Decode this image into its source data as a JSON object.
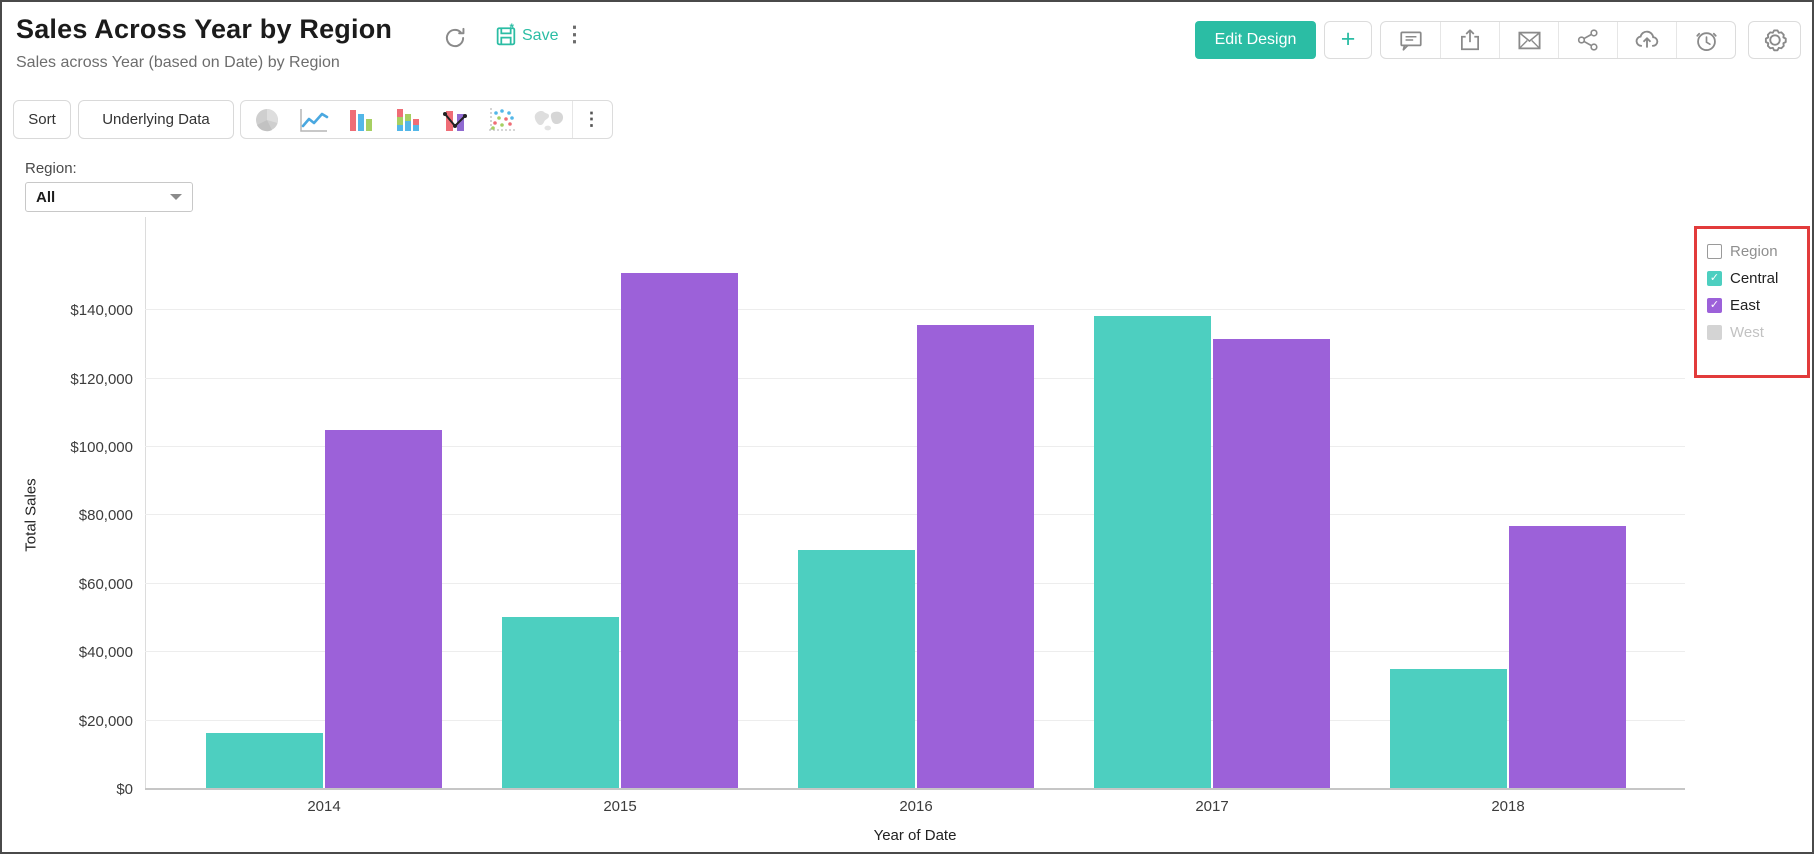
{
  "header": {
    "title": "Sales Across Year by Region",
    "subtitle": "Sales across Year (based on Date) by Region",
    "save_label": "Save",
    "edit_design_label": "Edit Design",
    "plus_label": "+",
    "kebab_label": "⋮",
    "action_icons": [
      "refresh-icon",
      "save-icon",
      "kebab-menu-icon",
      "comment-icon",
      "export-icon",
      "email-icon",
      "share-icon",
      "cloud-upload-icon",
      "alarm-clock-icon",
      "gear-icon"
    ]
  },
  "toolbar": {
    "sort_label": "Sort",
    "underlying_data_label": "Underlying Data",
    "kebab_label": "⋮",
    "chart_type_icons": [
      "pie-chart-icon",
      "line-chart-icon",
      "bar-chart-icon",
      "stacked-bar-chart-icon",
      "bar-line-combo-icon",
      "scatter-chart-icon",
      "map-chart-icon"
    ]
  },
  "filter": {
    "label": "Region:",
    "value": "All"
  },
  "legend": {
    "title": "Region",
    "title_color": "#8f8f8f",
    "items": [
      {
        "label": "Central",
        "color": "#4dcfc0",
        "checked": true,
        "enabled": true,
        "label_color": "#222222"
      },
      {
        "label": "East",
        "color": "#9c61d9",
        "checked": true,
        "enabled": true,
        "label_color": "#222222"
      },
      {
        "label": "West",
        "color": "#d4d4d4",
        "checked": false,
        "enabled": false,
        "label_color": "#c2c2c2"
      }
    ]
  },
  "chart_data": {
    "type": "bar",
    "title": "Sales Across Year by Region",
    "categories": [
      "2014",
      "2015",
      "2016",
      "2017",
      "2018"
    ],
    "series": [
      {
        "name": "Central",
        "color": "#4dcfc0",
        "values": [
          16500,
          50300,
          69800,
          138400,
          35000
        ]
      },
      {
        "name": "East",
        "color": "#9c61d9",
        "values": [
          105100,
          150800,
          135600,
          131500,
          76900
        ]
      }
    ],
    "xlabel": "Year of Date",
    "ylabel": "Total Sales",
    "ylim": [
      0,
      155000
    ],
    "ytick_step": 20000,
    "ytick_max": 140000,
    "ytick_prefix": "$",
    "grid": true,
    "legend_position": "top-right",
    "legend_highlighted_with_red_box": true
  },
  "colors": {
    "accent_teal": "#2bbda4",
    "bar_central": "#4dcfc0",
    "bar_east": "#9c61d9",
    "disabled_grey": "#d4d4d4",
    "annotation_red": "#e23b3b"
  }
}
